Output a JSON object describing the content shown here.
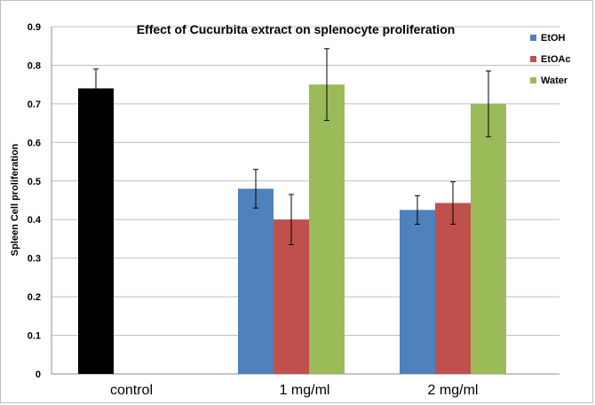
{
  "chart_data": {
    "type": "bar",
    "title": "Effect of Cucurbita extract on splenocyte proliferation",
    "ylabel": "Spleen Cell proliferation",
    "xlabel": "",
    "ylim": [
      0,
      0.9
    ],
    "yticks": [
      "0",
      "0.1",
      "0.2",
      "0.3",
      "0.4",
      "0.5",
      "0.6",
      "0.7",
      "0.8",
      "0.9"
    ],
    "categories": [
      "control",
      "1 mg/ml",
      "2 mg/ml"
    ],
    "legend_position": "top-right",
    "grid": true,
    "control": {
      "value": 0.74,
      "error": 0.05,
      "color": "#000000"
    },
    "series": [
      {
        "name": "EtOH",
        "color": "#4f81bd",
        "values": [
          null,
          0.48,
          0.425
        ],
        "errors": [
          null,
          0.05,
          0.037
        ]
      },
      {
        "name": "EtOAc",
        "color": "#c0504d",
        "values": [
          null,
          0.4,
          0.443
        ],
        "errors": [
          null,
          0.065,
          0.055
        ]
      },
      {
        "name": "Water",
        "color": "#9bbb59",
        "values": [
          null,
          0.75,
          0.7
        ],
        "errors": [
          null,
          0.093,
          0.085
        ]
      }
    ]
  }
}
